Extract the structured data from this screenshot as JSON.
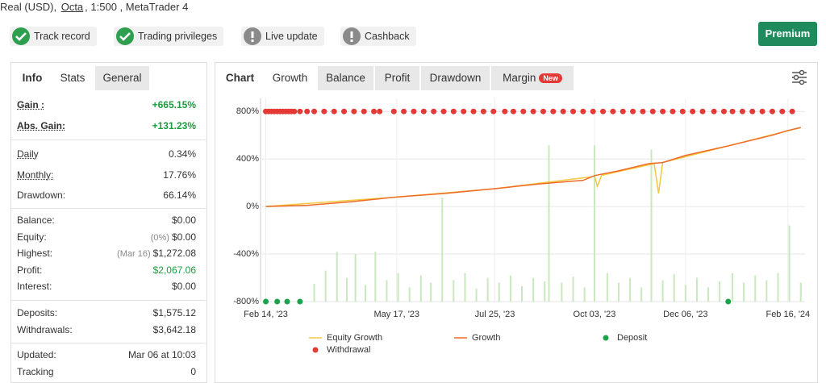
{
  "header": {
    "prefix": "Real (USD),",
    "broker": "Octa",
    "suffix": ", 1:500 , MetaTrader 4"
  },
  "badges": [
    "Track record",
    "Trading privileges",
    "Live update",
    "Cashback"
  ],
  "premium": "Premium",
  "stats": {
    "tabs": [
      "Info",
      "Stats",
      "General"
    ],
    "groups": [
      [
        {
          "label": "Gain :",
          "value": "+665.15%"
        },
        {
          "label": "Abs. Gain:",
          "value": "+131.23%"
        }
      ],
      [
        {
          "label": "Daily",
          "value": "0.34%"
        },
        {
          "label": "Monthly:",
          "value": "17.76%"
        },
        {
          "label": "Drawdown:",
          "value": "66.14%"
        }
      ],
      [
        {
          "label": "Balance:",
          "value": "$0.00"
        },
        {
          "label": "Equity:",
          "note": "(0%)",
          "value": "$0.00"
        },
        {
          "label": "Highest:",
          "note": "(Mar 16)",
          "value": "$1,272.08"
        },
        {
          "label": "Profit:",
          "value": "$2,067.06"
        },
        {
          "label": "Interest:",
          "value": "$0.00"
        }
      ],
      [
        {
          "label": "Deposits:",
          "value": "$1,575.12"
        },
        {
          "label": "Withdrawals:",
          "value": "$3,642.18"
        }
      ],
      [
        {
          "label": "Updated:",
          "value": "Mar 06 at 10:03"
        },
        {
          "label": "Tracking",
          "value": "0"
        }
      ]
    ]
  },
  "chart_tabs": [
    "Chart",
    "Growth",
    "Balance",
    "Profit",
    "Drawdown",
    "Margin",
    "New"
  ],
  "chart_data": {
    "type": "line",
    "xlim": [
      "2023-02-12",
      "2024-02-28"
    ],
    "ylim": [
      -800,
      910
    ],
    "xticks": [
      {
        "value": "2023-02-14",
        "label": "Feb 14, '23"
      },
      {
        "value": "2023-05-17",
        "label": "May 17, '23"
      },
      {
        "value": "2023-07-25",
        "label": "Jul 25, '23"
      },
      {
        "value": "2023-10-03",
        "label": "Oct 03, '23"
      },
      {
        "value": "2023-12-06",
        "label": "Dec 06, '23"
      },
      {
        "value": "2024-02-16",
        "label": "Feb 16, '24"
      }
    ],
    "yticks": [
      {
        "value": 800,
        "label": "800%"
      },
      {
        "value": 400,
        "label": "400%"
      },
      {
        "value": 0,
        "label": "0%"
      },
      {
        "value": -400,
        "label": "-400%"
      },
      {
        "value": -800,
        "label": "-800%"
      }
    ],
    "grid": true,
    "series": [
      {
        "type": "bar",
        "color": "#c9e8c0",
        "x": [
          "2023-03-20",
          "2023-03-28",
          "2023-04-05",
          "2023-04-12",
          "2023-04-18",
          "2023-04-25",
          "2023-05-02",
          "2023-05-10",
          "2023-05-18",
          "2023-05-26",
          "2023-06-03",
          "2023-06-10",
          "2023-06-18",
          "2023-06-26",
          "2023-07-04",
          "2023-07-12",
          "2023-07-20",
          "2023-07-28",
          "2023-08-05",
          "2023-08-13",
          "2023-08-21",
          "2023-08-29",
          "2023-09-01",
          "2023-09-10",
          "2023-09-18",
          "2023-09-26",
          "2023-10-03",
          "2023-10-12",
          "2023-10-20",
          "2023-10-28",
          "2023-11-05",
          "2023-11-12",
          "2023-11-20",
          "2023-11-28",
          "2023-12-06",
          "2023-12-14",
          "2023-12-22",
          "2023-12-30",
          "2024-01-08",
          "2024-01-16",
          "2024-01-24",
          "2024-02-01",
          "2024-02-09",
          "2024-02-17",
          "2024-02-25"
        ],
        "values": [
          -650,
          -540,
          -380,
          -600,
          -400,
          -660,
          -380,
          -620,
          -560,
          -680,
          -580,
          -640,
          75,
          -620,
          -560,
          -690,
          -600,
          -640,
          -580,
          -670,
          -600,
          -630,
          515,
          -640,
          -590,
          -680,
          515,
          -560,
          -640,
          -600,
          -680,
          480,
          -620,
          -570,
          -660,
          -600,
          -680,
          -630,
          -560,
          -640,
          -580,
          -620,
          -560,
          -160,
          -640
        ]
      },
      {
        "name": "Equity Growth",
        "type": "line",
        "color": "#f3c93b",
        "x": [
          "2023-02-14",
          "2023-05-17",
          "2023-07-25",
          "2023-10-01",
          "2023-10-03",
          "2023-10-05",
          "2023-10-08",
          "2023-11-12",
          "2023-11-14",
          "2023-11-17",
          "2023-11-20",
          "2024-02-25"
        ],
        "values": [
          0,
          80,
          150,
          250,
          260,
          170,
          262,
          355,
          360,
          110,
          370,
          665
        ]
      },
      {
        "name": "Growth",
        "type": "line",
        "color": "#ee6a2a",
        "x": [
          "2023-02-14",
          "2023-03-15",
          "2023-04-15",
          "2023-05-17",
          "2023-06-20",
          "2023-07-25",
          "2023-08-25",
          "2023-09-25",
          "2023-10-03",
          "2023-10-20",
          "2023-11-10",
          "2023-11-20",
          "2023-12-06",
          "2024-01-05",
          "2024-02-05",
          "2024-02-16",
          "2024-02-25"
        ],
        "values": [
          0,
          10,
          40,
          80,
          110,
          150,
          190,
          220,
          260,
          300,
          360,
          370,
          430,
          510,
          600,
          640,
          665
        ]
      },
      {
        "name": "Deposit",
        "type": "scatter",
        "color": "#1aa34a",
        "x": [
          "2023-02-14",
          "2023-02-22",
          "2023-03-01",
          "2023-03-10",
          "2024-01-05"
        ],
        "values": [
          -800,
          -800,
          -800,
          -800,
          -800
        ]
      },
      {
        "name": "Withdrawal",
        "type": "scatter",
        "color": "#e53935",
        "x": [
          "2023-02-14",
          "2023-02-16",
          "2023-02-18",
          "2023-02-20",
          "2023-02-22",
          "2023-02-24",
          "2023-02-26",
          "2023-02-28",
          "2023-03-02",
          "2023-03-04",
          "2023-03-06",
          "2023-03-10",
          "2023-03-15",
          "2023-03-20",
          "2023-03-27",
          "2023-04-03",
          "2023-04-10",
          "2023-04-17",
          "2023-04-24",
          "2023-05-01",
          "2023-05-05",
          "2023-05-15",
          "2023-05-22",
          "2023-05-29",
          "2023-06-05",
          "2023-06-12",
          "2023-06-19",
          "2023-06-26",
          "2023-07-03",
          "2023-07-10",
          "2023-07-17",
          "2023-07-24",
          "2023-08-01",
          "2023-08-07",
          "2023-08-14",
          "2023-08-21",
          "2023-08-28",
          "2023-09-04",
          "2023-09-11",
          "2023-09-18",
          "2023-09-25",
          "2023-10-02",
          "2023-10-09",
          "2023-10-16",
          "2023-10-23",
          "2023-10-30",
          "2023-11-06",
          "2023-11-13",
          "2023-11-20",
          "2023-11-27",
          "2023-12-04",
          "2023-12-11",
          "2023-12-18",
          "2023-12-26",
          "2024-01-02",
          "2024-01-08",
          "2024-01-15",
          "2024-01-22",
          "2024-01-29",
          "2024-02-05",
          "2024-02-12",
          "2024-02-19"
        ],
        "values": [
          800,
          800,
          800,
          800,
          800,
          800,
          800,
          800,
          800,
          800,
          800,
          800,
          800,
          800,
          800,
          800,
          800,
          800,
          800,
          800,
          800,
          800,
          800,
          800,
          800,
          800,
          800,
          800,
          800,
          800,
          800,
          800,
          800,
          800,
          800,
          800,
          800,
          800,
          800,
          800,
          800,
          800,
          800,
          800,
          800,
          800,
          800,
          800,
          800,
          800,
          800,
          800,
          800,
          800,
          800,
          800,
          800,
          800,
          800,
          800,
          800,
          800
        ]
      }
    ]
  }
}
